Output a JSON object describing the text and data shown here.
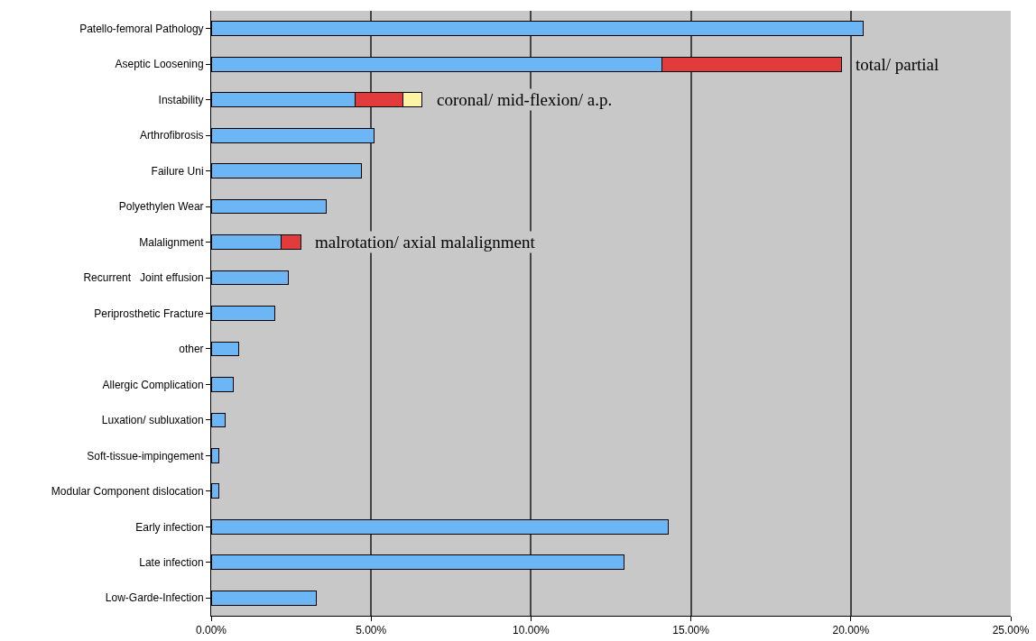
{
  "chart_data": {
    "type": "bar",
    "orientation": "horizontal",
    "stacked": true,
    "categories": [
      "Patello-femoral Pathology",
      "Aseptic Loosening",
      "Instability",
      "Arthrofibrosis",
      "Failure Uni",
      "Polyethylen Wear",
      "Malalignment",
      "Recurrent   Joint effusion",
      "Periprosthetic Fracture",
      "other",
      "Allergic Complication",
      "Luxation/ subluxation",
      "Soft-tissue-impingement",
      "Modular Component dislocation",
      "Early infection",
      "Late infection",
      "Low-Garde-Infection"
    ],
    "series": [
      {
        "color": "#6cb6f5",
        "values": [
          20.4,
          14.1,
          4.5,
          5.1,
          4.7,
          3.6,
          2.2,
          2.4,
          2.0,
          0.85,
          0.7,
          0.45,
          0.25,
          0.25,
          14.3,
          12.9,
          3.3
        ]
      },
      {
        "color": "#e23b3b",
        "values": [
          null,
          5.6,
          1.5,
          null,
          null,
          null,
          0.6,
          null,
          null,
          null,
          null,
          null,
          null,
          null,
          null,
          null,
          null
        ]
      },
      {
        "color": "#fdf3a2",
        "values": [
          null,
          null,
          0.6,
          null,
          null,
          null,
          null,
          null,
          null,
          null,
          null,
          null,
          null,
          null,
          null,
          null,
          null
        ]
      }
    ],
    "xlim": [
      0,
      25
    ],
    "xticks": [
      {
        "value": 0,
        "label": "0.00%"
      },
      {
        "value": 5,
        "label": "5.00%"
      },
      {
        "value": 10,
        "label": "10.00%"
      },
      {
        "value": 15,
        "label": "15.00%"
      },
      {
        "value": 20,
        "label": "20.00%"
      },
      {
        "value": 25,
        "label": "25.00%"
      }
    ],
    "grid": "x",
    "annotations": [
      "total/ partial",
      "coronal/ mid-flexion/ a.p.",
      "malrotation/ axial malalignment"
    ]
  }
}
